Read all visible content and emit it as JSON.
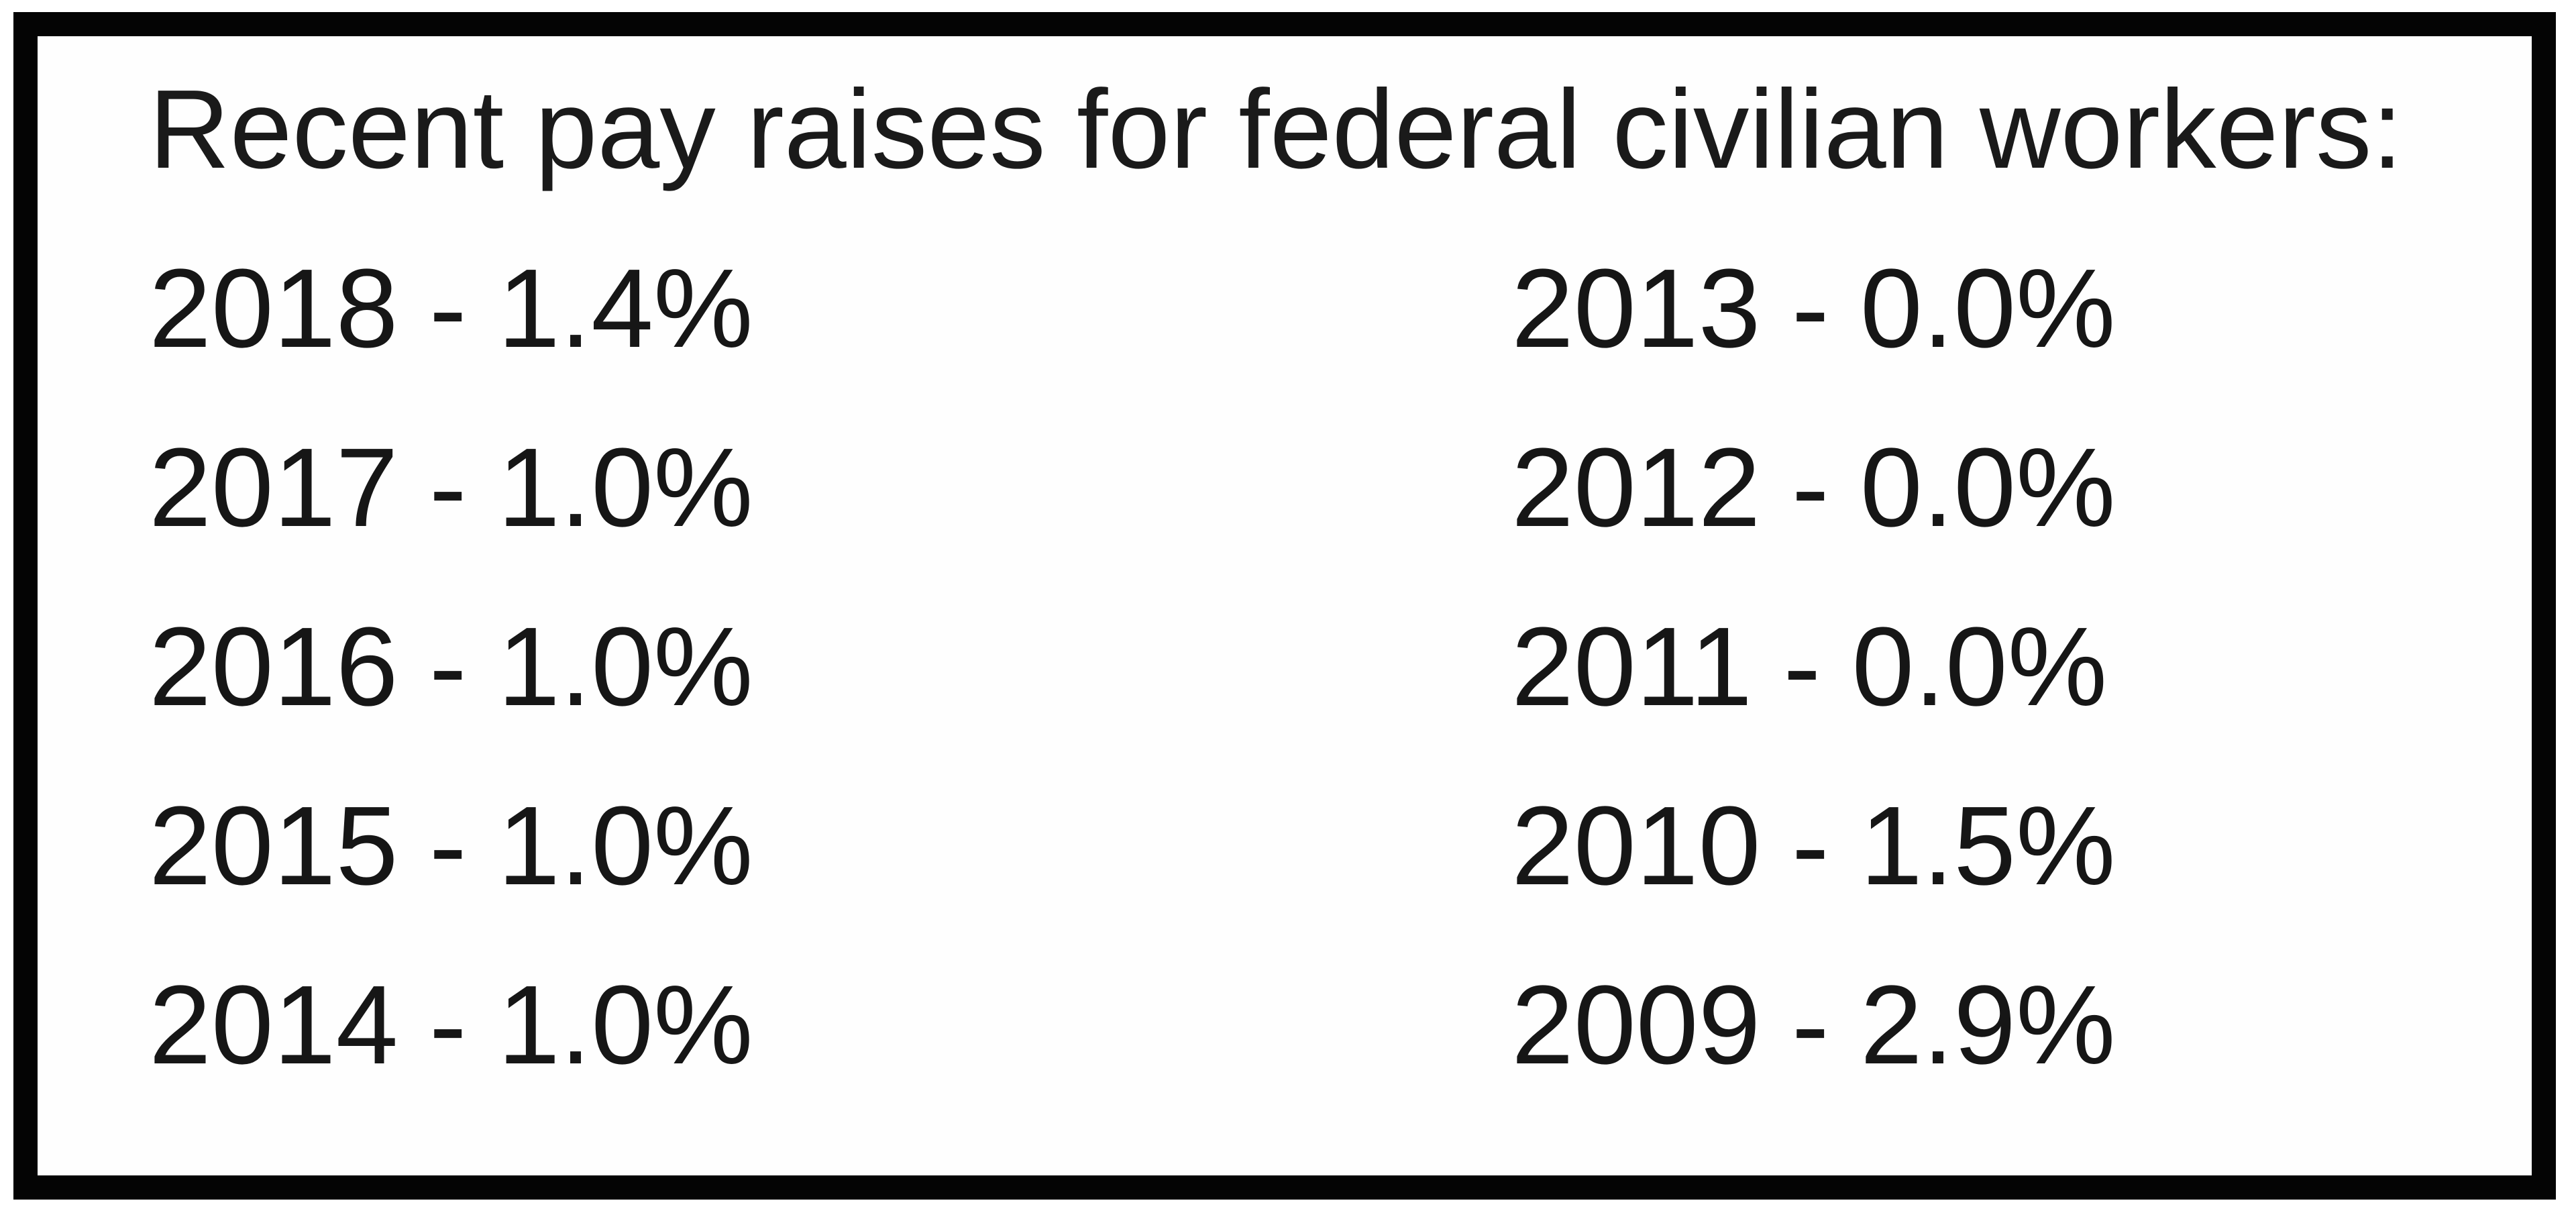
{
  "title": "Recent pay raises for federal civilian workers:",
  "columns": {
    "left": [
      "2018 - 1.4%",
      "2017 - 1.0%",
      "2016 - 1.0%",
      "2015 - 1.0%",
      "2014 - 1.0%"
    ],
    "right": [
      "2013 - 0.0%",
      "2012 - 0.0%",
      "2011 - 0.0%",
      "2010 - 1.5%",
      "2009 - 2.9%"
    ]
  },
  "table": {
    "entries": [
      {
        "year": 2018,
        "raise_percent": 1.4
      },
      {
        "year": 2017,
        "raise_percent": 1.0
      },
      {
        "year": 2016,
        "raise_percent": 1.0
      },
      {
        "year": 2015,
        "raise_percent": 1.0
      },
      {
        "year": 2014,
        "raise_percent": 1.0
      },
      {
        "year": 2013,
        "raise_percent": 0.0
      },
      {
        "year": 2012,
        "raise_percent": 0.0
      },
      {
        "year": 2011,
        "raise_percent": 0.0
      },
      {
        "year": 2010,
        "raise_percent": 1.5
      },
      {
        "year": 2009,
        "raise_percent": 2.9
      }
    ]
  },
  "colors": {
    "border": "#040404",
    "text": "#1a1a1a",
    "background": "#ffffff"
  }
}
